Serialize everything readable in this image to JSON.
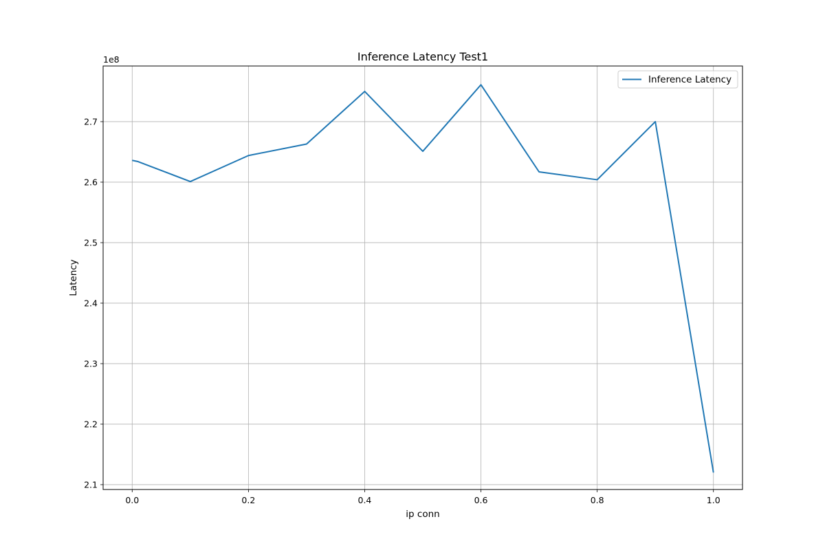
{
  "chart_data": {
    "type": "line",
    "title": "Inference Latency Test1",
    "xlabel": "ip conn",
    "ylabel": "Latency",
    "y_offset_label": "1e8",
    "xlim": [
      -0.05,
      1.05
    ],
    "ylim": [
      2.092,
      2.792
    ],
    "y_scale_factor": 100000000,
    "xticks": [
      0.0,
      0.2,
      0.4,
      0.6,
      0.8,
      1.0
    ],
    "xtick_labels": [
      "0.0",
      "0.2",
      "0.4",
      "0.6",
      "0.8",
      "1.0"
    ],
    "yticks": [
      2.1,
      2.2,
      2.3,
      2.4,
      2.5,
      2.6,
      2.7
    ],
    "ytick_labels": [
      "2.1",
      "2.2",
      "2.3",
      "2.4",
      "2.5",
      "2.6",
      "2.7"
    ],
    "grid": true,
    "legend_position": "top-right",
    "series": [
      {
        "name": "Inference Latency",
        "color": "#1f77b4",
        "x": [
          0.0,
          0.01,
          0.1,
          0.2,
          0.3,
          0.4,
          0.5,
          0.6,
          0.7,
          0.8,
          0.9,
          1.0
        ],
        "y": [
          2.636,
          2.634,
          2.601,
          2.644,
          2.663,
          2.75,
          2.651,
          2.761,
          2.617,
          2.604,
          2.7,
          2.12
        ]
      }
    ]
  }
}
